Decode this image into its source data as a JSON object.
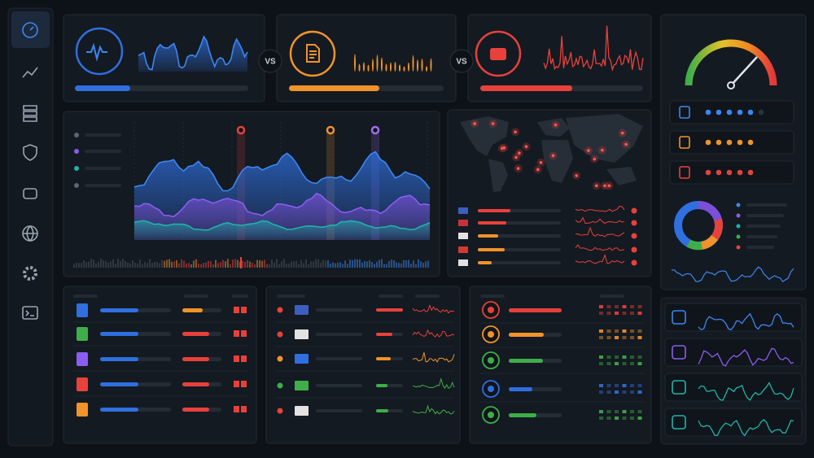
{
  "comparison_separators": [
    "VS",
    "VS"
  ]
}
